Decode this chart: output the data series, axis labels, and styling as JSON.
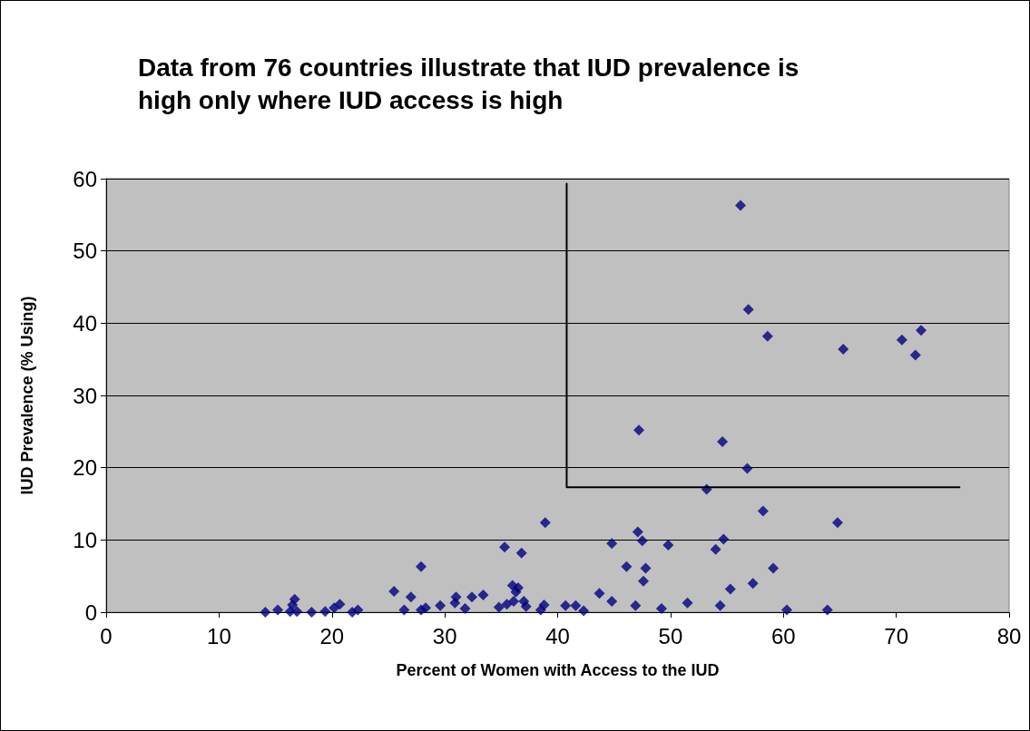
{
  "chart_data": {
    "type": "scatter",
    "title": "Data from 76 countries illustrate that IUD prevalence is\nhigh only where IUD access is high",
    "xlabel": "Percent of Women with Access to the IUD",
    "ylabel": "IUD Prevalence (% Using)",
    "xlim": [
      0,
      80
    ],
    "xticks": [
      0,
      10,
      20,
      30,
      40,
      50,
      60,
      70,
      80
    ],
    "ylim": [
      0,
      60
    ],
    "yticks": [
      0,
      10,
      20,
      30,
      40,
      50,
      60
    ],
    "grid": "y",
    "marker": "diamond",
    "series": [
      {
        "color": "#000080",
        "x": [
          14.1,
          15.2,
          16.3,
          16.5,
          16.7,
          16.9,
          18.2,
          19.4,
          20.2,
          20.7,
          21.8,
          22.3,
          25.5,
          26.4,
          27.0,
          27.9,
          27.9,
          28.3,
          29.6,
          30.9,
          31.0,
          31.8,
          32.4,
          33.4,
          34.8,
          35.3,
          35.5,
          36.0,
          36.1,
          36.3,
          36.5,
          36.8,
          37.0,
          37.2,
          38.5,
          38.8,
          38.9,
          40.7,
          41.6,
          42.3,
          43.7,
          44.8,
          44.8,
          46.1,
          46.9,
          47.1,
          47.2,
          47.5,
          47.6,
          47.8,
          49.2,
          49.8,
          51.5,
          53.2,
          54.0,
          54.4,
          54.6,
          54.7,
          55.3,
          56.2,
          56.8,
          56.9,
          57.3,
          58.2,
          58.6,
          59.1,
          60.3,
          63.9,
          64.8,
          65.3,
          70.5,
          71.7,
          72.2
        ],
        "values": [
          0,
          0.3,
          0.1,
          1.0,
          1.8,
          0.1,
          0,
          0.1,
          0.6,
          1.1,
          0,
          0.3,
          2.9,
          0.3,
          2.1,
          6.3,
          0.3,
          0.6,
          0.9,
          1.3,
          2.1,
          0.5,
          2.1,
          2.4,
          0.7,
          9.0,
          1.1,
          3.7,
          1.5,
          2.8,
          3.4,
          8.2,
          1.5,
          0.8,
          0.3,
          1.0,
          12.4,
          0.9,
          0.9,
          0.2,
          2.6,
          9.5,
          1.5,
          6.3,
          0.9,
          11.1,
          25.2,
          9.9,
          4.3,
          6.1,
          0.5,
          9.3,
          1.3,
          17.0,
          8.7,
          0.9,
          23.6,
          10.1,
          3.2,
          56.3,
          19.9,
          41.9,
          4.0,
          14.0,
          38.2,
          6.1,
          0.3,
          0.3,
          12.4,
          36.4,
          37.7,
          35.6,
          39.0
        ]
      },
      {
        "type": "line",
        "color": "#000000",
        "marker": "none",
        "line_style": "solid",
        "x": [
          40.8,
          40.8,
          75.6
        ],
        "values": [
          59.3,
          17.3,
          17.3
        ]
      }
    ]
  }
}
